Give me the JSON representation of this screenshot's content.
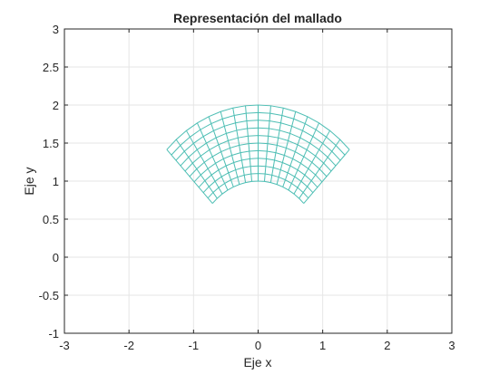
{
  "chart_data": {
    "type": "mesh",
    "title": "Representación del mallado",
    "xlabel": "Eje x",
    "ylabel": "Eje y",
    "xlim": [
      -3,
      3
    ],
    "ylim": [
      -1,
      3
    ],
    "xticks": [
      -3,
      -2,
      -1,
      0,
      1,
      2,
      3
    ],
    "xtick_labels": [
      "-3",
      "-2",
      "-1",
      "0",
      "1",
      "2",
      "3"
    ],
    "yticks": [
      -1,
      -0.5,
      0,
      0.5,
      1,
      1.5,
      2,
      2.5,
      3
    ],
    "ytick_labels": [
      "-1",
      "-0.5",
      "0",
      "0.5",
      "1",
      "1.5",
      "2",
      "2.5",
      "3"
    ],
    "grid": true,
    "mesh": {
      "shape": "annular sector",
      "center": [
        0,
        0
      ],
      "inner_radius": 1,
      "outer_radius": 2,
      "angle_start_deg": 45,
      "angle_end_deg": 135,
      "radial_divisions": 10,
      "angular_divisions": 16
    },
    "colors": {
      "mesh": "#4dbeb4",
      "grid": "#e6e6e6",
      "axes": "#262626",
      "background": "#ffffff"
    }
  }
}
